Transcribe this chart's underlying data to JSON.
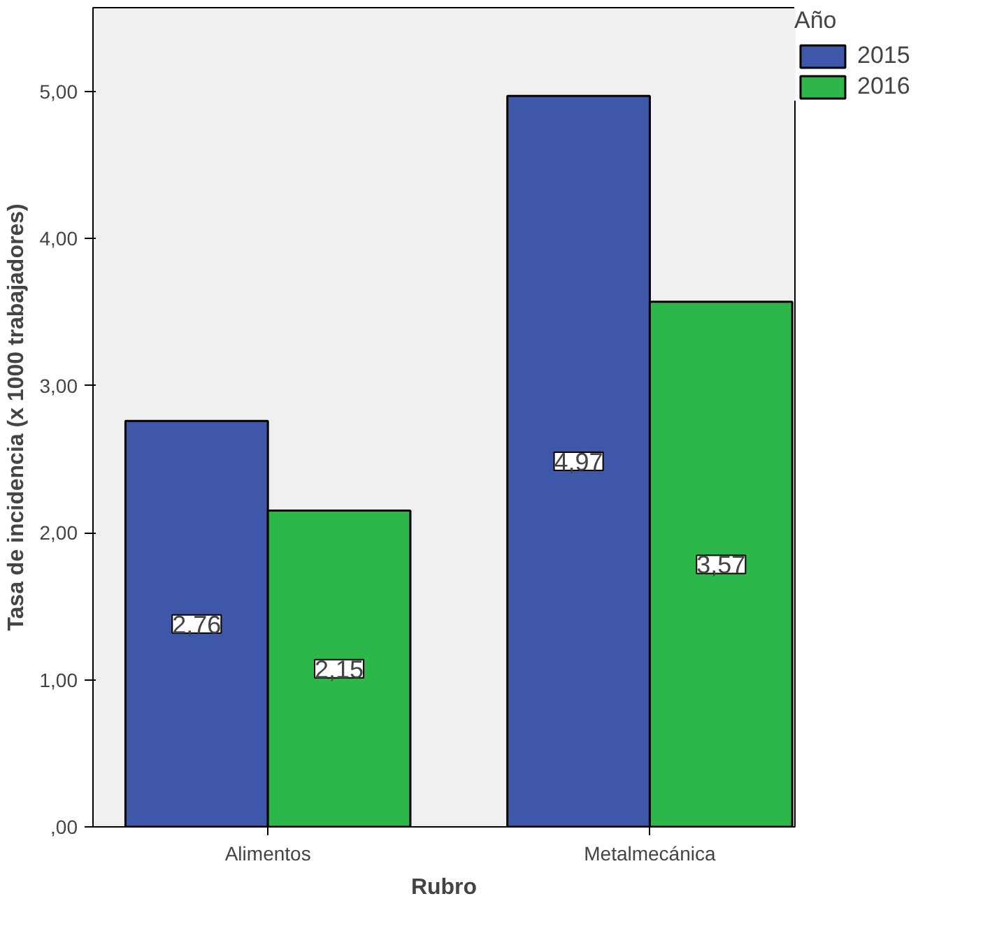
{
  "chart_data": {
    "type": "bar",
    "xlabel": "Rubro",
    "ylabel": "Tasa de incidencia (x 1000 trabajadores)",
    "legend_title": "Año",
    "categories": [
      "Alimentos",
      "Metalmecánica"
    ],
    "series": [
      {
        "name": "2015",
        "color": "#3e57a8",
        "values": [
          2.76,
          4.97
        ],
        "value_labels": [
          "2,76",
          "4,97"
        ]
      },
      {
        "name": "2016",
        "color": "#2db74b",
        "values": [
          2.15,
          3.57
        ],
        "value_labels": [
          "2,15",
          "3,57"
        ]
      }
    ],
    "ylim": [
      0,
      5.57
    ],
    "yticks": [
      {
        "value": 0,
        "label": ",00"
      },
      {
        "value": 1,
        "label": "1,00"
      },
      {
        "value": 2,
        "label": "2,00"
      },
      {
        "value": 3,
        "label": "3,00"
      },
      {
        "value": 4,
        "label": "4,00"
      },
      {
        "value": 5,
        "label": "5,00"
      }
    ],
    "grid": false,
    "legend": "top right"
  }
}
